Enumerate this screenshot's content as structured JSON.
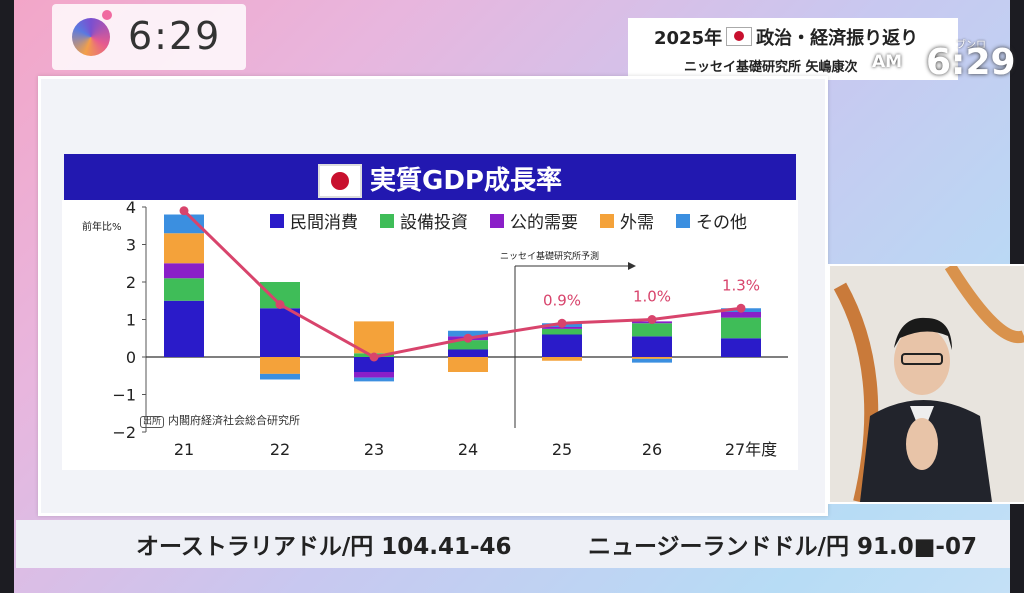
{
  "clock": "6:29",
  "info": {
    "line1_pre": "2025年",
    "line1_post": "政治・経済振り返り",
    "line2": "ニッセイ基礎研究所 矢嶋康次",
    "ampm": "AM",
    "bigclock": "6:29",
    "corner": "ブンロ"
  },
  "ticker": {
    "item1": "オーストラリアドル/円  104.41-46",
    "item2": "ニュージーランドドル/円  91.0■-07"
  },
  "chart_data": {
    "type": "bar",
    "title": "実質GDP成長率",
    "ylabel": "前年比%",
    "ylim": [
      -2,
      4
    ],
    "yticks": [
      "4",
      "3",
      "2",
      "1",
      "0",
      "−1",
      "−2"
    ],
    "categories": [
      "21",
      "22",
      "23",
      "24",
      "25",
      "26",
      "27年度"
    ],
    "stacked": true,
    "series": [
      {
        "name": "民間消費",
        "color": "#2a1bc9",
        "values": [
          1.5,
          1.3,
          -0.4,
          0.2,
          0.6,
          0.55,
          0.5
        ]
      },
      {
        "name": "設備投資",
        "color": "#3fbd58",
        "values": [
          0.6,
          0.7,
          0.1,
          0.25,
          0.15,
          0.35,
          0.55
        ]
      },
      {
        "name": "公的需要",
        "color": "#8a1fc8",
        "values": [
          0.4,
          0.0,
          -0.15,
          0.1,
          0.05,
          0.05,
          0.15
        ]
      },
      {
        "name": "外需",
        "color": "#f4a23a",
        "values": [
          0.8,
          -0.45,
          0.85,
          -0.4,
          -0.1,
          -0.05,
          0.0
        ]
      },
      {
        "name": "その他",
        "color": "#3b8fe0",
        "values": [
          0.5,
          -0.15,
          -0.1,
          0.15,
          0.1,
          -0.1,
          0.1
        ]
      }
    ],
    "line": {
      "name": "実質GDP成長率",
      "color": "#d8446c",
      "values": [
        3.9,
        1.4,
        0.0,
        0.5,
        0.9,
        1.0,
        1.3
      ]
    },
    "data_labels": [
      "",
      "",
      "",
      "",
      "0.9%",
      "1.0%",
      "1.3%"
    ],
    "forecast_label": "ニッセイ基礎研究所予測",
    "source_tag": "出所",
    "source": "内閣府経済社会総合研究所"
  }
}
